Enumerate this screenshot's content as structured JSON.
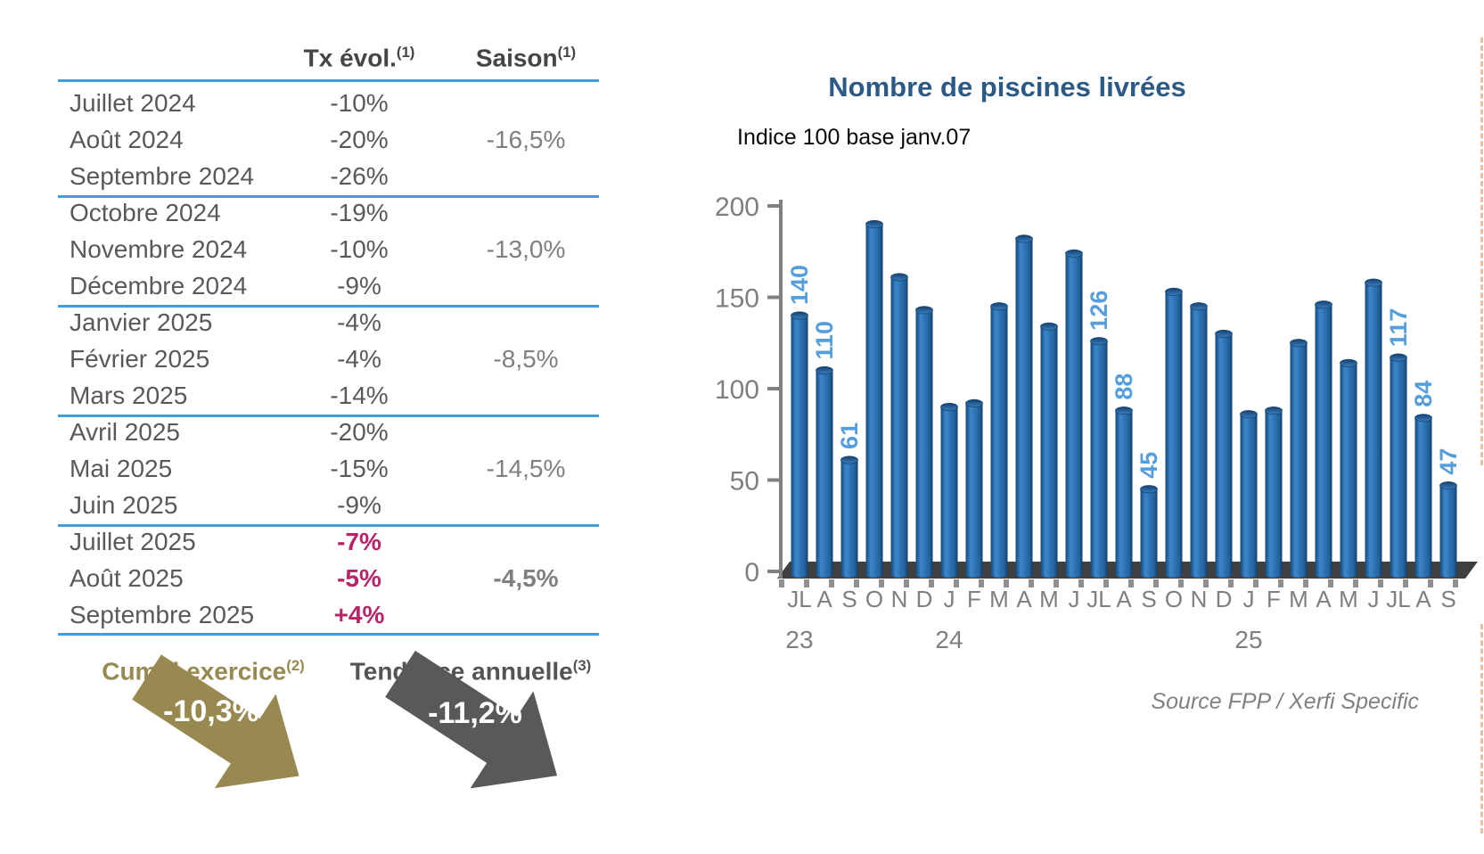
{
  "table": {
    "headers": {
      "tx": "Tx évol.",
      "tx_sup": "(1)",
      "saison": "Saison",
      "saison_sup": "(1)"
    },
    "separator_color": "#41A0DC",
    "highlight_color": "#B72468",
    "groups": [
      {
        "saison": "-16,5%",
        "saison_bold": false,
        "rows": [
          {
            "month": "Juillet 2024",
            "tx": "-10%",
            "hl": false
          },
          {
            "month": "Août 2024",
            "tx": "-20%",
            "hl": false
          },
          {
            "month": "Septembre 2024",
            "tx": "-26%",
            "hl": false
          }
        ]
      },
      {
        "saison": "-13,0%",
        "saison_bold": false,
        "rows": [
          {
            "month": "Octobre 2024",
            "tx": "-19%",
            "hl": false
          },
          {
            "month": "Novembre 2024",
            "tx": "-10%",
            "hl": false
          },
          {
            "month": "Décembre 2024",
            "tx": "-9%",
            "hl": false
          }
        ]
      },
      {
        "saison": "-8,5%",
        "saison_bold": false,
        "rows": [
          {
            "month": "Janvier 2025",
            "tx": "-4%",
            "hl": false
          },
          {
            "month": "Février 2025",
            "tx": "-4%",
            "hl": false
          },
          {
            "month": "Mars 2025",
            "tx": "-14%",
            "hl": false
          }
        ]
      },
      {
        "saison": "-14,5%",
        "saison_bold": false,
        "rows": [
          {
            "month": "Avril 2025",
            "tx": "-20%",
            "hl": false
          },
          {
            "month": "Mai 2025",
            "tx": "-15%",
            "hl": false
          },
          {
            "month": "Juin 2025",
            "tx": "-9%",
            "hl": false
          }
        ]
      },
      {
        "saison": "-4,5%",
        "saison_bold": true,
        "rows": [
          {
            "month": "Juillet 2025",
            "tx": "-7%",
            "hl": true
          },
          {
            "month": "Août 2025",
            "tx": "-5%",
            "hl": true
          },
          {
            "month": "Septembre 2025",
            "tx": "+4%",
            "hl": true
          }
        ]
      }
    ]
  },
  "summary": {
    "cumul": {
      "label": "Cumul exercice",
      "sup": "(2)",
      "value": "-10,3%",
      "color": "#97894F"
    },
    "tendance": {
      "label": "Tendance annuelle",
      "sup": "(3)",
      "value": "-11,2%",
      "color": "#595959"
    }
  },
  "chart_data": {
    "type": "bar",
    "title": "Nombre de piscines livrées",
    "subtitle": "Indice 100 base janv.07",
    "source": "Source FPP / Xerfi Specific",
    "ylabel": "",
    "xlabel": "",
    "ylim": [
      0,
      200
    ],
    "yticks": [
      0,
      50,
      100,
      150,
      200
    ],
    "grid": false,
    "legend_position": "none",
    "categories": [
      "JL",
      "A",
      "S",
      "O",
      "N",
      "D",
      "J",
      "F",
      "M",
      "A",
      "M",
      "J",
      "JL",
      "A",
      "S",
      "O",
      "N",
      "D",
      "J",
      "F",
      "M",
      "A",
      "M",
      "J",
      "JL",
      "A",
      "S"
    ],
    "year_markers": [
      {
        "label": "23",
        "index": 0
      },
      {
        "label": "24",
        "index": 6
      },
      {
        "label": "25",
        "index": 18
      }
    ],
    "values": [
      140,
      110,
      61,
      190,
      161,
      143,
      90,
      92,
      145,
      182,
      134,
      174,
      126,
      88,
      45,
      153,
      145,
      130,
      86,
      88,
      125,
      146,
      114,
      158,
      117,
      84,
      47
    ],
    "data_labels": {
      "0": "140",
      "1": "110",
      "2": "61",
      "12": "126",
      "13": "88",
      "14": "45",
      "24": "117",
      "25": "84",
      "26": "47"
    },
    "bar_color": "#2E74B5",
    "bar_edge_color": "#16497A",
    "label_color": "#559EDD",
    "axis_color": "#808080",
    "title_color": "#2C5A87"
  }
}
